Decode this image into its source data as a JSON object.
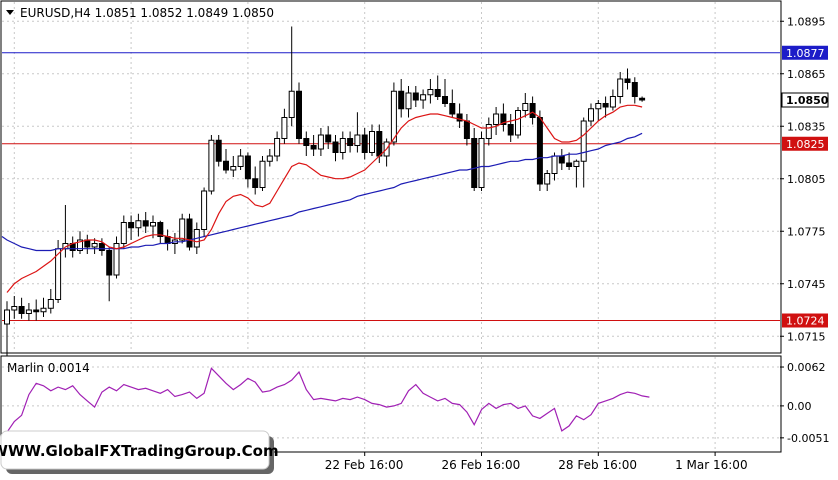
{
  "header": {
    "symbol_line": "EURUSD,H4  1.0851 1.0852 1.0849 1.0850"
  },
  "watermark": {
    "text": "WWW.GlobalFXTradingGroup.Com"
  },
  "chart_data": [
    {
      "type": "candlestick",
      "symbol": "EURUSD",
      "timeframe": "H4",
      "ohlc": {
        "open": 1.0851,
        "high": 1.0852,
        "low": 1.0849,
        "close": 1.085
      },
      "ylim": [
        1.0706,
        1.0906
      ],
      "y_ticks": [
        "1.0895",
        "1.0865",
        "1.0835",
        "1.0805",
        "1.0775",
        "1.0745",
        "1.0715"
      ],
      "x_ticks": [
        "22 Feb 16:00",
        "26 Feb 16:00",
        "28 Feb 16:00",
        "1 Mar 16:00"
      ],
      "x_tick_index": [
        49,
        65,
        81,
        97
      ],
      "horizontal_lines": [
        {
          "value": 1.0877,
          "label": "1.0877",
          "color": "#1c1cc8"
        },
        {
          "value": 1.0825,
          "label": "1.0825",
          "color": "#d01010"
        },
        {
          "value": 1.0724,
          "label": "1.0724",
          "color": "#d01010"
        }
      ],
      "current_price": {
        "value": 1.085,
        "label": "1.0850"
      },
      "candles": [
        [
          1.0722,
          1.0735,
          1.07,
          1.073
        ],
        [
          1.073,
          1.0738,
          1.0725,
          1.0732
        ],
        [
          1.0732,
          1.0737,
          1.0725,
          1.0728
        ],
        [
          1.0728,
          1.0734,
          1.0724,
          1.073
        ],
        [
          1.073,
          1.0736,
          1.0724,
          1.0729
        ],
        [
          1.0729,
          1.0737,
          1.0726,
          1.0731
        ],
        [
          1.0731,
          1.0742,
          1.0728,
          1.0736
        ],
        [
          1.0736,
          1.077,
          1.0734,
          1.0765
        ],
        [
          1.0765,
          1.079,
          1.076,
          1.0768
        ],
        [
          1.0768,
          1.0772,
          1.076,
          1.0764
        ],
        [
          1.0764,
          1.0775,
          1.0762,
          1.077
        ],
        [
          1.077,
          1.0773,
          1.0762,
          1.0766
        ],
        [
          1.0766,
          1.0771,
          1.0762,
          1.0768
        ],
        [
          1.0768,
          1.0771,
          1.0761,
          1.0764
        ],
        [
          1.0764,
          1.0766,
          1.0735,
          1.075
        ],
        [
          1.075,
          1.0772,
          1.0748,
          1.0768
        ],
        [
          1.0768,
          1.0784,
          1.0765,
          1.078
        ],
        [
          1.078,
          1.0784,
          1.077,
          1.0777
        ],
        [
          1.0777,
          1.0785,
          1.0772,
          1.0781
        ],
        [
          1.0781,
          1.0786,
          1.0774,
          1.0778
        ],
        [
          1.0778,
          1.0784,
          1.0771,
          1.078
        ],
        [
          1.078,
          1.0781,
          1.0768,
          1.0772
        ],
        [
          1.0772,
          1.0776,
          1.0764,
          1.0768
        ],
        [
          1.0768,
          1.0774,
          1.0762,
          1.077
        ],
        [
          1.077,
          1.0785,
          1.0768,
          1.0782
        ],
        [
          1.0782,
          1.0785,
          1.0764,
          1.0766
        ],
        [
          1.0766,
          1.078,
          1.0762,
          1.0776
        ],
        [
          1.0776,
          1.08,
          1.0772,
          1.0798
        ],
        [
          1.0798,
          1.083,
          1.0796,
          1.0827
        ],
        [
          1.0827,
          1.083,
          1.0812,
          1.0815
        ],
        [
          1.0815,
          1.0822,
          1.0808,
          1.081
        ],
        [
          1.081,
          1.0818,
          1.0806,
          1.0812
        ],
        [
          1.0812,
          1.0822,
          1.081,
          1.0818
        ],
        [
          1.0818,
          1.082,
          1.08,
          1.0805
        ],
        [
          1.0805,
          1.0812,
          1.0796,
          1.08
        ],
        [
          1.08,
          1.0818,
          1.0798,
          1.0815
        ],
        [
          1.0815,
          1.0822,
          1.0812,
          1.0818
        ],
        [
          1.0818,
          1.0832,
          1.0815,
          1.0828
        ],
        [
          1.0828,
          1.0845,
          1.0825,
          1.084
        ],
        [
          1.084,
          1.0892,
          1.0835,
          1.0855
        ],
        [
          1.0855,
          1.086,
          1.0825,
          1.0828
        ],
        [
          1.0828,
          1.0832,
          1.0818,
          1.0824
        ],
        [
          1.0824,
          1.083,
          1.0818,
          1.0822
        ],
        [
          1.0822,
          1.0834,
          1.0818,
          1.083
        ],
        [
          1.083,
          1.0835,
          1.0822,
          1.0826
        ],
        [
          1.0826,
          1.083,
          1.0815,
          1.082
        ],
        [
          1.082,
          1.0832,
          1.0816,
          1.0828
        ],
        [
          1.0828,
          1.0832,
          1.082,
          1.0824
        ],
        [
          1.0824,
          1.0843,
          1.082,
          1.083
        ],
        [
          1.083,
          1.0834,
          1.0816,
          1.082
        ],
        [
          1.082,
          1.0836,
          1.0818,
          1.0832
        ],
        [
          1.0832,
          1.0836,
          1.0814,
          1.0818
        ],
        [
          1.0818,
          1.0828,
          1.0812,
          1.0826
        ],
        [
          1.0826,
          1.086,
          1.0824,
          1.0855
        ],
        [
          1.0855,
          1.0862,
          1.084,
          1.0845
        ],
        [
          1.0845,
          1.0858,
          1.084,
          1.0854
        ],
        [
          1.0854,
          1.0858,
          1.0846,
          1.085
        ],
        [
          1.085,
          1.0856,
          1.0845,
          1.0853
        ],
        [
          1.0853,
          1.0862,
          1.0848,
          1.0856
        ],
        [
          1.0856,
          1.0864,
          1.085,
          1.0852
        ],
        [
          1.0852,
          1.0862,
          1.0846,
          1.0848
        ],
        [
          1.0848,
          1.0856,
          1.084,
          1.0842
        ],
        [
          1.0842,
          1.0848,
          1.0834,
          1.0838
        ],
        [
          1.0838,
          1.0842,
          1.0824,
          1.0828
        ],
        [
          1.0828,
          1.0834,
          1.0798,
          1.08
        ],
        [
          1.08,
          1.0832,
          1.0798,
          1.0828
        ],
        [
          1.0828,
          1.084,
          1.0824,
          1.0836
        ],
        [
          1.0836,
          1.0846,
          1.083,
          1.0842
        ],
        [
          1.0842,
          1.0848,
          1.0832,
          1.0836
        ],
        [
          1.0836,
          1.0842,
          1.0826,
          1.083
        ],
        [
          1.083,
          1.0846,
          1.0828,
          1.0844
        ],
        [
          1.0844,
          1.0854,
          1.084,
          1.0848
        ],
        [
          1.0848,
          1.0852,
          1.0836,
          1.084
        ],
        [
          1.084,
          1.0844,
          1.0798,
          1.0802
        ],
        [
          1.0802,
          1.081,
          1.0798,
          1.0808
        ],
        [
          1.0808,
          1.082,
          1.0804,
          1.0818
        ],
        [
          1.0818,
          1.0822,
          1.081,
          1.0814
        ],
        [
          1.0814,
          1.082,
          1.081,
          1.0812
        ],
        [
          1.0812,
          1.0816,
          1.08,
          1.0815
        ],
        [
          1.0815,
          1.084,
          1.08,
          1.0838
        ],
        [
          1.0838,
          1.0848,
          1.0835,
          1.0845
        ],
        [
          1.0845,
          1.085,
          1.0838,
          1.0848
        ],
        [
          1.0848,
          1.0852,
          1.084,
          1.0846
        ],
        [
          1.0846,
          1.0856,
          1.0844,
          1.0852
        ],
        [
          1.0852,
          1.0866,
          1.0848,
          1.0862
        ],
        [
          1.0862,
          1.0868,
          1.0856,
          1.086
        ],
        [
          1.086,
          1.0863,
          1.0848,
          1.0852
        ],
        [
          1.0851,
          1.0852,
          1.0849,
          1.085
        ]
      ],
      "ma_red": [
        1.074,
        1.0745,
        1.0748,
        1.075,
        1.0752,
        1.0755,
        1.0758,
        1.0762,
        1.0766,
        1.0768,
        1.0769,
        1.077,
        1.077,
        1.0769,
        1.0766,
        1.0765,
        1.0766,
        1.0768,
        1.077,
        1.0772,
        1.0773,
        1.0773,
        1.0772,
        1.0771,
        1.0771,
        1.077,
        1.0769,
        1.077,
        1.0776,
        1.0785,
        1.0792,
        1.0795,
        1.0796,
        1.0794,
        1.079,
        1.0789,
        1.0791,
        1.0798,
        1.0805,
        1.0812,
        1.0814,
        1.0813,
        1.081,
        1.0807,
        1.0806,
        1.0805,
        1.0805,
        1.0806,
        1.0808,
        1.081,
        1.0814,
        1.0818,
        1.0822,
        1.0828,
        1.0834,
        1.0838,
        1.084,
        1.0841,
        1.0842,
        1.0842,
        1.0841,
        1.084,
        1.0839,
        1.0838,
        1.0836,
        1.0834,
        1.0834,
        1.0835,
        1.0837,
        1.0838,
        1.0839,
        1.0841,
        1.0843,
        1.084,
        1.0834,
        1.0828,
        1.0826,
        1.0826,
        1.0827,
        1.083,
        1.0834,
        1.0838,
        1.0841,
        1.0843,
        1.0846,
        1.0847,
        1.0847,
        1.0846
      ],
      "ma_blue": [
        1.077,
        1.0768,
        1.0766,
        1.0765,
        1.0764,
        1.0764,
        1.0764,
        1.0765,
        1.0765,
        1.0765,
        1.0765,
        1.0765,
        1.0765,
        1.0765,
        1.0765,
        1.0765,
        1.0765,
        1.0766,
        1.0766,
        1.0767,
        1.0767,
        1.0768,
        1.0768,
        1.0769,
        1.0769,
        1.077,
        1.0771,
        1.0772,
        1.0773,
        1.0774,
        1.0775,
        1.0776,
        1.0777,
        1.0778,
        1.0779,
        1.078,
        1.0781,
        1.0782,
        1.0783,
        1.0784,
        1.0786,
        1.0787,
        1.0788,
        1.0789,
        1.079,
        1.0791,
        1.0792,
        1.0793,
        1.0795,
        1.0796,
        1.0797,
        1.0798,
        1.0799,
        1.08,
        1.0802,
        1.0803,
        1.0804,
        1.0805,
        1.0806,
        1.0807,
        1.0808,
        1.0809,
        1.081,
        1.081,
        1.0811,
        1.0812,
        1.0812,
        1.0813,
        1.0814,
        1.0815,
        1.0815,
        1.0816,
        1.0816,
        1.0817,
        1.0817,
        1.0818,
        1.0818,
        1.0819,
        1.0819,
        1.082,
        1.0821,
        1.0822,
        1.0824,
        1.0825,
        1.0826,
        1.0828,
        1.0829,
        1.0831
      ]
    },
    {
      "type": "line",
      "title": "Marlin 0.0014",
      "ylim": [
        -0.0072,
        0.0078
      ],
      "y_ticks": [
        "0.0062",
        "0.00",
        "-0.0051"
      ],
      "values": [
        -0.0042,
        -0.0025,
        -0.0015,
        0.0018,
        0.0036,
        0.0032,
        0.0024,
        0.003,
        0.0026,
        0.0032,
        0.0018,
        0.0008,
        -0.0002,
        0.0022,
        0.003,
        0.0024,
        0.0034,
        0.003,
        0.0026,
        0.0028,
        0.0024,
        0.002,
        0.0026,
        0.0015,
        0.0018,
        0.0022,
        0.0012,
        0.002,
        0.006,
        0.0048,
        0.0036,
        0.0026,
        0.0034,
        0.0044,
        0.0038,
        0.0022,
        0.0024,
        0.003,
        0.0034,
        0.0041,
        0.0054,
        0.0026,
        0.001,
        0.0012,
        0.001,
        0.0008,
        0.0012,
        0.001,
        0.0014,
        0.001,
        0.0004,
        0.0002,
        -0.0002,
        0.0,
        0.0004,
        0.0024,
        0.0034,
        0.002,
        0.0014,
        0.0008,
        0.0012,
        0.0004,
        0.0002,
        -0.001,
        -0.003,
        -0.0006,
        0.0004,
        -0.0004,
        0.0002,
        0.0004,
        -0.0004,
        0.0,
        -0.0016,
        -0.002,
        -0.0012,
        -0.0004,
        -0.004,
        -0.0032,
        -0.0016,
        -0.0022,
        -0.0014,
        0.0004,
        0.0008,
        0.0012,
        0.0018,
        0.0022,
        0.002,
        0.0016,
        0.0014
      ]
    }
  ]
}
